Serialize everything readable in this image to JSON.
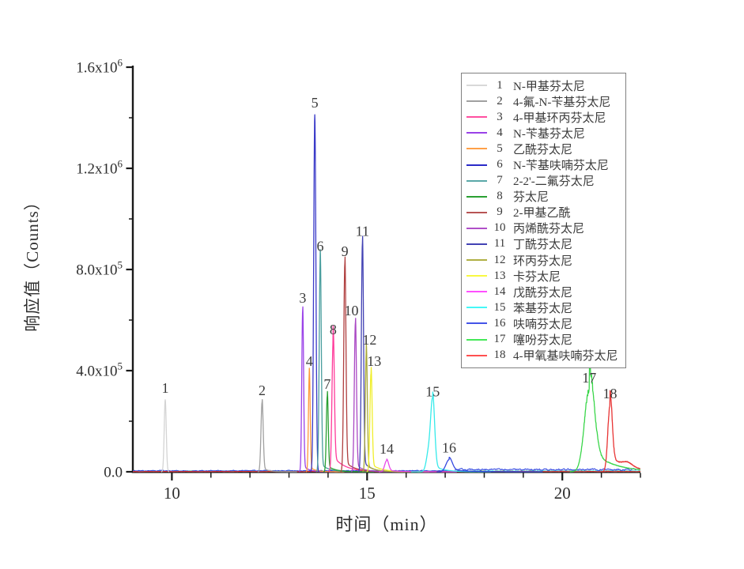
{
  "figure": {
    "background": "#ffffff",
    "axis_color": "#1a1a1a",
    "text_color": "#2e2e2e"
  },
  "chart_data": {
    "type": "line",
    "title": "",
    "xlabel": "时间（min）",
    "ylabel": "响应值（Counts）",
    "grid": false,
    "legend_position": "upper right",
    "x_axis": {
      "range": [
        9,
        22
      ],
      "major_ticks": [
        {
          "value": 10,
          "label": "10"
        },
        {
          "value": 15,
          "label": "15"
        },
        {
          "value": 20,
          "label": "20"
        }
      ],
      "minor_tick_step": 1
    },
    "y_axis": {
      "range": [
        0,
        1600000
      ],
      "major_ticks": [
        {
          "value": 0,
          "mantissa": "0.0",
          "exponent": ""
        },
        {
          "value": 400000,
          "mantissa": "4.0x10",
          "exponent": "5"
        },
        {
          "value": 800000,
          "mantissa": "8.0x10",
          "exponent": "5"
        },
        {
          "value": 1200000,
          "mantissa": "1.2x10",
          "exponent": "6"
        },
        {
          "value": 1600000,
          "mantissa": "1.6x10",
          "exponent": "6"
        }
      ],
      "minor_tick_step": 200000
    },
    "peaks": [
      {
        "label": "1",
        "time_min": 9.83,
        "height_counts": 285000,
        "color": "#d4d4d4",
        "sigma": 0.026
      },
      {
        "label": "2",
        "time_min": 12.31,
        "height_counts": 275000,
        "color": "#a0a0a0",
        "sigma": 0.028,
        "tail": {
          "f": 0.06,
          "tau": 0.15
        }
      },
      {
        "label": "3",
        "time_min": 13.35,
        "height_counts": 640000,
        "color": "#9a42e8",
        "sigma": 0.023,
        "tail": {
          "f": 0.04,
          "tau": 0.15
        }
      },
      {
        "label": "4",
        "time_min": 13.52,
        "height_counts": 390000,
        "color": "#ff9838",
        "sigma": 0.022,
        "tail": {
          "f": 0.05,
          "tau": 0.15
        }
      },
      {
        "label": "5",
        "time_min": 13.66,
        "height_counts": 1412000,
        "color": "#3a3ac8",
        "sigma": 0.028
      },
      {
        "label": "6",
        "time_min": 13.8,
        "height_counts": 845000,
        "color": "#4a9e9e",
        "sigma": 0.026,
        "tail": {
          "f": 0.04,
          "tau": 0.2
        }
      },
      {
        "label": "7",
        "time_min": 13.98,
        "height_counts": 300000,
        "color": "#2aa032",
        "sigma": 0.024,
        "tail": {
          "f": 0.08,
          "tau": 0.2
        }
      },
      {
        "label": "8",
        "time_min": 14.13,
        "height_counts": 515000,
        "color": "#ff3a9a",
        "sigma": 0.03,
        "tail": {
          "f": 0.12,
          "tau": 0.3
        }
      },
      {
        "label": "9",
        "time_min": 14.43,
        "height_counts": 825000,
        "color": "#b04040",
        "sigma": 0.028,
        "tail": {
          "f": 0.05,
          "tau": 0.25
        }
      },
      {
        "label": "10",
        "time_min": 14.7,
        "height_counts": 590000,
        "color": "#aa48c4",
        "sigma": 0.027,
        "tail": {
          "f": 0.05,
          "tau": 0.2
        },
        "label_dx": -5
      },
      {
        "label": "11",
        "time_min": 14.88,
        "height_counts": 905000,
        "color": "#4242b4",
        "sigma": 0.027,
        "tail": {
          "f": 0.05,
          "tau": 0.2
        }
      },
      {
        "label": "12",
        "time_min": 14.98,
        "height_counts": 475000,
        "color": "#a8a83a",
        "sigma": 0.025,
        "tail": {
          "f": 0.06,
          "tau": 0.2
        },
        "label_dx": 4
      },
      {
        "label": "13",
        "time_min": 15.1,
        "height_counts": 390000,
        "color": "#f0ee2a",
        "sigma": 0.028,
        "tail": {
          "f": 0.08,
          "tau": 0.25
        },
        "label_dx": 4
      },
      {
        "label": "14",
        "time_min": 15.5,
        "height_counts": 44000,
        "color": "#e84ae8",
        "sigma": 0.05,
        "tail": {
          "f": 0.15,
          "tau": 0.3
        }
      },
      {
        "label": "15",
        "time_min": 16.68,
        "height_counts": 270000,
        "color": "#36eaea",
        "sigma": 0.05,
        "tail": {
          "f": 0.1,
          "tau": 0.25
        },
        "shoulder": {
          "dt": -0.1,
          "f": 0.3,
          "sigma": 0.06
        }
      },
      {
        "label": "16",
        "time_min": 17.1,
        "height_counts": 48000,
        "color": "#3448e0",
        "sigma": 0.08,
        "tail": {
          "f": 0.2,
          "tau": 0.4
        }
      },
      {
        "label": "17",
        "time_min": 20.69,
        "height_counts": 325000,
        "color": "#3ad64a",
        "sigma": 0.125,
        "tail": {
          "f": 0.28,
          "tau": 0.55
        },
        "noisy": true
      },
      {
        "label": "18",
        "time_min": 21.22,
        "height_counts": 262000,
        "color": "#e83434",
        "sigma": 0.055,
        "tail": {
          "f": 0.22,
          "tau": 0.5
        },
        "bump": {
          "dt": 0.45,
          "f": 0.06,
          "sigma": 0.12
        },
        "noisy": true
      }
    ],
    "baselines": [
      {
        "color": "#a8a8a8",
        "base": 3500,
        "amp": 2500,
        "from": 9,
        "to": 22
      },
      {
        "color": "#28a030",
        "base": 2000,
        "amp": 1500,
        "from": 9,
        "to": 22
      },
      {
        "color": "#30e8e8",
        "base": 2500,
        "amp": 1800,
        "from": 9,
        "to": 22
      },
      {
        "color": "#3048e0",
        "base": 4000,
        "amp": 3200,
        "from": 9,
        "to": 17.25
      },
      {
        "color": "#3048e0",
        "base": 9000,
        "amp": 5500,
        "from": 17.25,
        "to": 22
      },
      {
        "color": "#e83030",
        "base": 900,
        "amp": 700,
        "from": 9,
        "to": 22
      }
    ],
    "legend": {
      "items": [
        {
          "n": "1",
          "label": "N-甲基芬太尼",
          "color": "#d8d8d8"
        },
        {
          "n": "2",
          "label": "4-氟-N-苄基芬太尼",
          "color": "#a0a0a0"
        },
        {
          "n": "3",
          "label": "4-甲基环丙芬太尼",
          "color": "#ff4fa0"
        },
        {
          "n": "4",
          "label": "N-苄基芬太尼",
          "color": "#9a42e8"
        },
        {
          "n": "5",
          "label": "乙酰芬太尼",
          "color": "#ffa048"
        },
        {
          "n": "6",
          "label": "N-苄基呋喃芬太尼",
          "color": "#2a2ac8"
        },
        {
          "n": "7",
          "label": "2-2'-二氟芬太尼",
          "color": "#5aa8a8"
        },
        {
          "n": "8",
          "label": "芬太尼",
          "color": "#2aa032"
        },
        {
          "n": "9",
          "label": "2-甲基乙酰",
          "color": "#b85454"
        },
        {
          "n": "10",
          "label": "丙烯酰芬太尼",
          "color": "#b050c8"
        },
        {
          "n": "11",
          "label": "丁酰芬太尼",
          "color": "#4242b4"
        },
        {
          "n": "12",
          "label": "环丙芬太尼",
          "color": "#b0b044"
        },
        {
          "n": "13",
          "label": "卡芬太尼",
          "color": "#f8f842"
        },
        {
          "n": "14",
          "label": "戊酰芬太尼",
          "color": "#ff50ff"
        },
        {
          "n": "15",
          "label": "苯基芬太尼",
          "color": "#44f8f8"
        },
        {
          "n": "16",
          "label": "呋喃芬太尼",
          "color": "#4454e8"
        },
        {
          "n": "17",
          "label": "噻吩芬太尼",
          "color": "#44e858"
        },
        {
          "n": "18",
          "label": "4-甲氧基呋喃芬太尼",
          "color": "#ff5050"
        }
      ]
    }
  }
}
